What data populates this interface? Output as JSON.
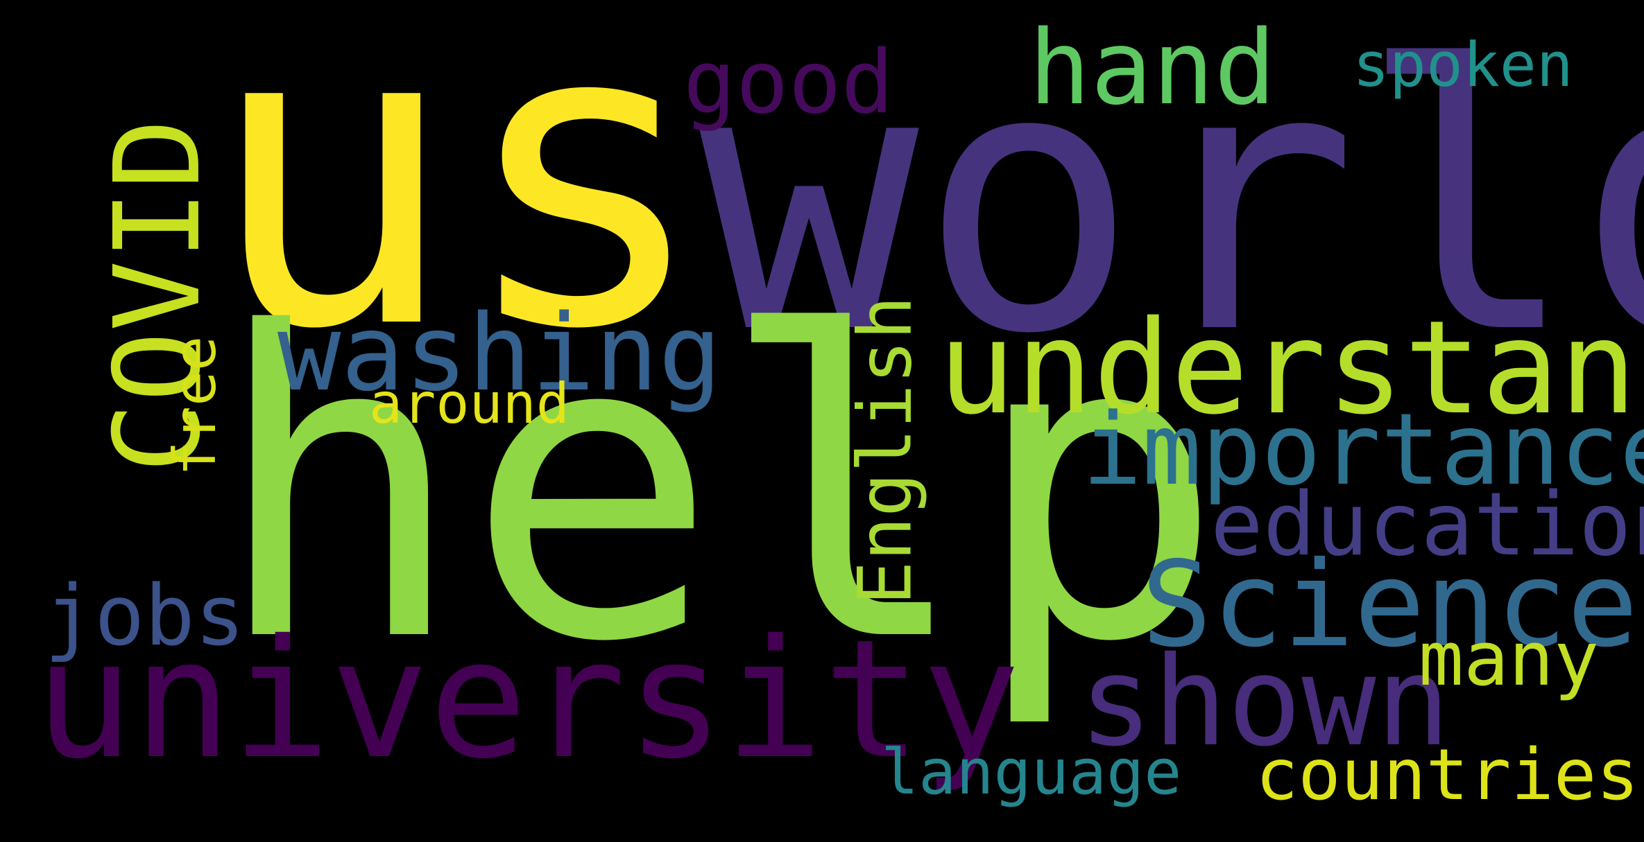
{
  "wordcloud": {
    "background": "#000000",
    "words": [
      {
        "id": "us",
        "text": "us",
        "color": "#fde725",
        "orientation": "horizontal"
      },
      {
        "id": "world",
        "text": "world",
        "color": "#46337e",
        "orientation": "horizontal"
      },
      {
        "id": "help",
        "text": "help",
        "color": "#8fd744",
        "orientation": "horizontal"
      },
      {
        "id": "university",
        "text": "university",
        "color": "#440154",
        "orientation": "horizontal"
      },
      {
        "id": "understand",
        "text": "understand",
        "color": "#b5de2b",
        "orientation": "horizontal"
      },
      {
        "id": "importance",
        "text": "importance",
        "color": "#2c728e",
        "orientation": "horizontal"
      },
      {
        "id": "education",
        "text": "education",
        "color": "#433e85",
        "orientation": "horizontal"
      },
      {
        "id": "science",
        "text": "Science",
        "color": "#31688e",
        "orientation": "horizontal"
      },
      {
        "id": "shown",
        "text": "shown",
        "color": "#472d7b",
        "orientation": "horizontal"
      },
      {
        "id": "many",
        "text": "many",
        "color": "#c2df23",
        "orientation": "horizontal"
      },
      {
        "id": "countries",
        "text": "countries",
        "color": "#dde318",
        "orientation": "horizontal"
      },
      {
        "id": "language",
        "text": "language",
        "color": "#25858e",
        "orientation": "horizontal"
      },
      {
        "id": "jobs",
        "text": "jobs",
        "color": "#3b528b",
        "orientation": "horizontal"
      },
      {
        "id": "washing",
        "text": "washing",
        "color": "#34618d",
        "orientation": "horizontal"
      },
      {
        "id": "around",
        "text": "around",
        "color": "#e5e419",
        "orientation": "horizontal"
      },
      {
        "id": "good",
        "text": "good",
        "color": "#450a5c",
        "orientation": "horizontal"
      },
      {
        "id": "hand",
        "text": "hand",
        "color": "#5ec962",
        "orientation": "horizontal"
      },
      {
        "id": "spoken",
        "text": "spoken",
        "color": "#21918c",
        "orientation": "horizontal"
      },
      {
        "id": "covid",
        "text": "COVID",
        "color": "#c7e020",
        "orientation": "vertical"
      },
      {
        "id": "free",
        "text": "free",
        "color": "#d8e219",
        "orientation": "vertical"
      },
      {
        "id": "english",
        "text": "English",
        "color": "#a8db34",
        "orientation": "vertical"
      }
    ]
  }
}
